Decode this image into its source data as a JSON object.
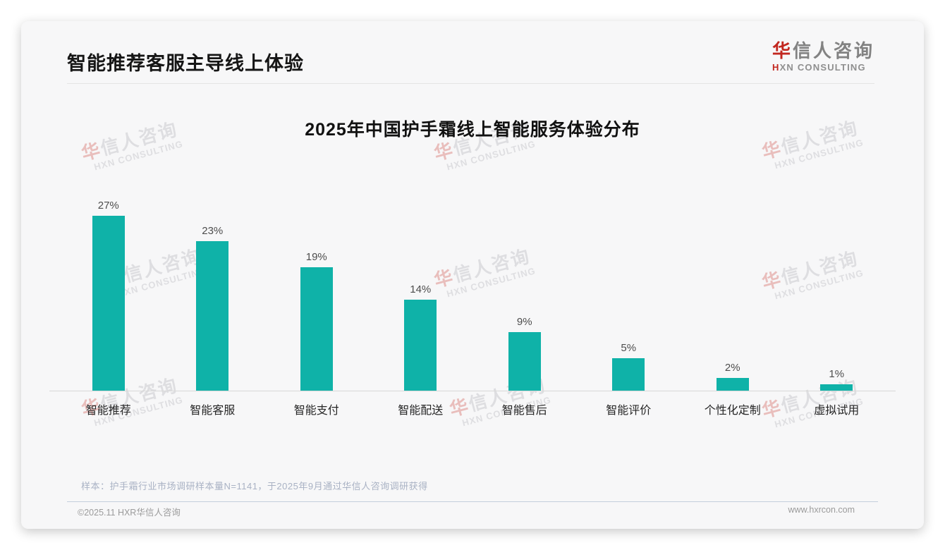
{
  "header": {
    "title": "智能推荐客服主导线上体验"
  },
  "logo": {
    "cn_accent": "华",
    "cn_rest": "信人咨询",
    "en_accent": "H",
    "en_rest": "XN CONSULTING"
  },
  "chart_data": {
    "type": "bar",
    "title": "2025年中国护手霜线上智能服务体验分布",
    "categories": [
      "智能推荐",
      "智能客服",
      "智能支付",
      "智能配送",
      "智能售后",
      "智能评价",
      "个性化定制",
      "虚拟试用"
    ],
    "values": [
      27,
      23,
      19,
      14,
      9,
      5,
      2,
      1
    ],
    "value_labels": [
      "27%",
      "23%",
      "19%",
      "14%",
      "9%",
      "5%",
      "2%",
      "1%"
    ],
    "xlabel": "",
    "ylabel": "",
    "ylim": [
      0,
      30
    ],
    "grid": false,
    "legend": false,
    "bar_color": "#0fb2a8"
  },
  "watermark": {
    "cn_accent": "华",
    "cn_rest": "信人咨询",
    "en": "HXN CONSULTING"
  },
  "footnote": "样本：护手霜行业市场调研样本量N=1141，于2025年9月通过华信人咨询调研获得",
  "footer": {
    "left": "©2025.11 HXR华信人咨询",
    "right": "www.hxrcon.com"
  },
  "colors": {
    "bar": "#0fb2a8",
    "accent_red": "#c2271f"
  }
}
